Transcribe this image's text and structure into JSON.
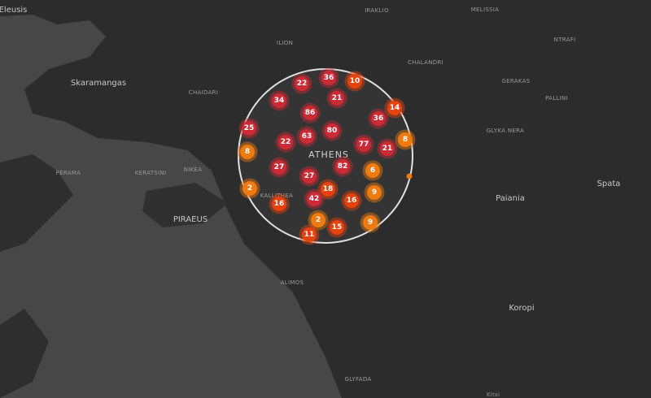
{
  "places": [
    "Eleusis",
    "Skaramangas",
    "CHAIDARI",
    "PERAMA",
    "KERATSINI",
    "NIKEA",
    "PIRAEUS",
    "KALLITHEA",
    "ATHENS",
    "ALIMOS",
    "GLYFADA",
    "ILION",
    "IRAKLIO",
    "CHALANDRI",
    "MELISSIA",
    "NTRAFI",
    "GERAKAS",
    "PALLINI",
    "GLYKA NERA",
    "Paiania",
    "Spata",
    "Koropi",
    "Kitsi"
  ],
  "clusters": [
    {
      "count": 22,
      "color": "#cc2b36"
    },
    {
      "count": 36,
      "color": "#cc2b36"
    },
    {
      "count": 10,
      "color": "#e6420e"
    },
    {
      "count": 34,
      "color": "#cc2b36"
    },
    {
      "count": 21,
      "color": "#cc2b36"
    },
    {
      "count": 14,
      "color": "#e6420e"
    },
    {
      "count": 86,
      "color": "#cc2b36"
    },
    {
      "count": 36,
      "color": "#cc2b36"
    },
    {
      "count": 25,
      "color": "#cc2b36"
    },
    {
      "count": 63,
      "color": "#cc2b36"
    },
    {
      "count": 80,
      "color": "#cc2b36"
    },
    {
      "count": 22,
      "color": "#cc2b36"
    },
    {
      "count": 77,
      "color": "#cc2b36"
    },
    {
      "count": 21,
      "color": "#cc2b36"
    },
    {
      "count": 8,
      "color": "#ee7a10"
    },
    {
      "count": 8,
      "color": "#ee7a10"
    },
    {
      "count": 27,
      "color": "#cc2b36"
    },
    {
      "count": 82,
      "color": "#cc2b36"
    },
    {
      "count": 6,
      "color": "#ee7a10"
    },
    {
      "count": 27,
      "color": "#cc2b36"
    },
    {
      "count": 18,
      "color": "#e6420e"
    },
    {
      "count": 2,
      "color": "#ee7a10"
    },
    {
      "count": 42,
      "color": "#cc2b36"
    },
    {
      "count": 16,
      "color": "#e6420e"
    },
    {
      "count": 9,
      "color": "#ee7a10"
    },
    {
      "count": 16,
      "color": "#e6420e"
    },
    {
      "count": 2,
      "color": "#ee7a10"
    },
    {
      "count": 9,
      "color": "#ee7a10"
    },
    {
      "count": 15,
      "color": "#e6420e"
    },
    {
      "count": 11,
      "color": "#e6420e"
    }
  ]
}
